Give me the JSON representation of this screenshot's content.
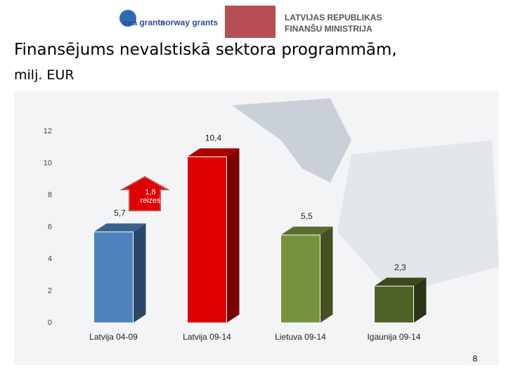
{
  "header": {
    "logo_eea": "eea grants",
    "logo_norway": "norway grants",
    "ministry": [
      "LATVIJAS REPUBLIKAS",
      "FINANŠU MINISTRIJA"
    ]
  },
  "page_number": "8",
  "chart_data": {
    "type": "bar3d",
    "title": "Finansējums nevalstiskā sektora programmām,",
    "subtitle": "milj. EUR",
    "categories": [
      "Latvija 04-09",
      "Latvija 09-14",
      "Lietuva 09-14",
      "Igaunija 09-14"
    ],
    "values": [
      5.7,
      10.4,
      5.5,
      2.3
    ],
    "value_labels": [
      "5,7",
      "10,4",
      "5,5",
      "2,3"
    ],
    "colors": [
      "#4f81bd",
      "#e00000",
      "#77933c",
      "#4f6228"
    ],
    "ylim": [
      0,
      12
    ],
    "yticks": [
      0,
      2,
      4,
      6,
      8,
      10,
      12
    ],
    "annotation": "1,8 reizes",
    "grid": false
  }
}
